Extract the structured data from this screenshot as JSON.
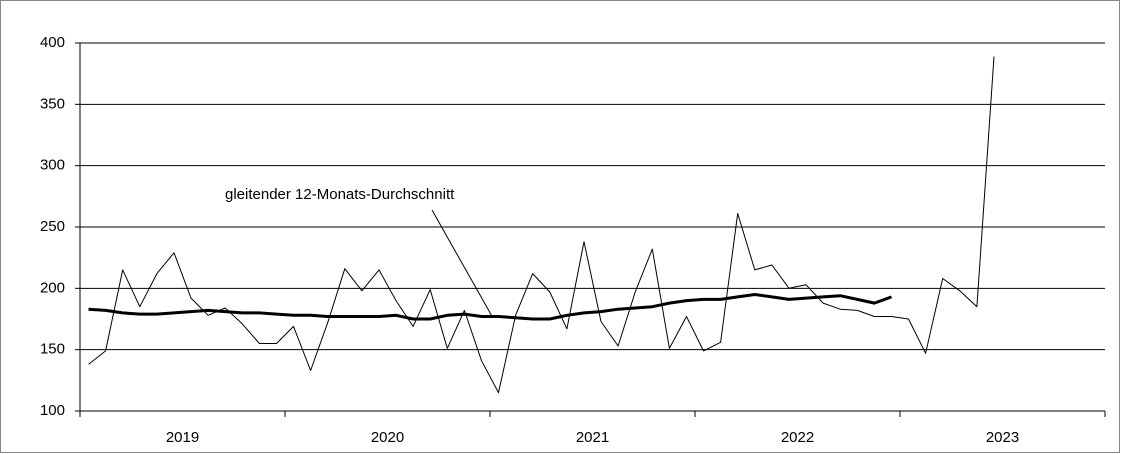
{
  "chart_data": {
    "type": "line",
    "annotation": "gleitender 12-Monats-Durchschnitt",
    "years": [
      "2019",
      "2020",
      "2021",
      "2022",
      "2023"
    ],
    "ylim": [
      100,
      400
    ],
    "yticks": [
      100,
      150,
      200,
      250,
      300,
      350,
      400
    ],
    "grid": true,
    "series": [
      {
        "color": "#000000",
        "line_width": 1,
        "values": [
          138,
          149,
          215,
          185,
          212,
          229,
          192,
          178,
          184,
          171,
          155,
          155,
          169,
          133,
          172,
          216,
          198,
          215,
          190,
          169,
          199,
          151,
          182,
          141,
          115,
          178,
          212,
          197,
          167,
          238,
          173,
          153,
          197,
          232,
          151,
          177,
          149,
          156,
          261,
          215,
          219,
          200,
          203,
          188,
          183,
          182,
          177,
          177,
          175,
          147,
          208,
          198,
          185,
          389,
          null,
          null,
          null,
          null,
          null,
          null
        ]
      },
      {
        "color": "#000000",
        "line_width": 3,
        "values": [
          183,
          182,
          180,
          179,
          179,
          180,
          181,
          182,
          181,
          180,
          180,
          179,
          178,
          178,
          177,
          177,
          177,
          177,
          178,
          175,
          175,
          178,
          179,
          177,
          177,
          176,
          175,
          175,
          178,
          180,
          181,
          183,
          184,
          185,
          188,
          190,
          191,
          191,
          193,
          195,
          193,
          191,
          192,
          193,
          194,
          191,
          188,
          193,
          null,
          null,
          null,
          null,
          null,
          null,
          null,
          null,
          null,
          null,
          null,
          null
        ]
      }
    ]
  }
}
